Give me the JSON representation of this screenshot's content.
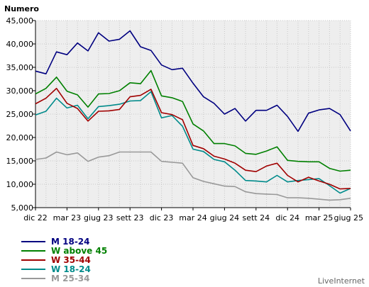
{
  "chart_data": {
    "type": "line",
    "ylabel": "Numero",
    "xlabel": "",
    "ylim": [
      5000,
      45000
    ],
    "yticks": [
      "5,000",
      "10,000",
      "15,000",
      "20,000",
      "25,000",
      "30,000",
      "35,000",
      "40,000",
      "45,000"
    ],
    "ytick_values": [
      5000,
      10000,
      15000,
      20000,
      25000,
      30000,
      35000,
      40000,
      45000
    ],
    "xticks": [
      "dic 22",
      "mar 23",
      "giug 23",
      "sett 23",
      "dic 23",
      "mar 24",
      "giug 24",
      "sett 24",
      "dic 24",
      "mar 25",
      "giug 25"
    ],
    "x": [
      "dic 22",
      "gen 23",
      "feb 23",
      "mar 23",
      "apr 23",
      "mag 23",
      "giug 23",
      "lug 23",
      "ago 23",
      "sett 23",
      "ott 23",
      "nov 23",
      "dic 23",
      "gen 24",
      "feb 24",
      "mar 24",
      "apr 24",
      "mag 24",
      "giug 24",
      "lug 24",
      "ago 24",
      "sett 24",
      "ott 24",
      "nov 24",
      "dic 24",
      "gen 25",
      "feb 25",
      "mar 25",
      "apr 25",
      "mag 25",
      "giug 25"
    ],
    "grid": true,
    "legend_position": "bottom-left",
    "series": [
      {
        "name": "M 18-24",
        "color": "#000080",
        "values": [
          34200,
          33600,
          38300,
          37700,
          40200,
          38500,
          42400,
          40600,
          41000,
          42800,
          39400,
          38600,
          35500,
          34500,
          34800,
          31600,
          28700,
          27300,
          25000,
          26200,
          23500,
          25800,
          25800,
          26900,
          24500,
          21300,
          25200,
          25900,
          26200,
          24900,
          21400
        ]
      },
      {
        "name": "W above 45",
        "color": "#008000",
        "values": [
          29300,
          30500,
          32900,
          29900,
          29100,
          26500,
          29300,
          29400,
          30000,
          31700,
          31500,
          34300,
          28900,
          28500,
          27700,
          22900,
          21400,
          18700,
          18700,
          18200,
          16600,
          16400,
          17100,
          18000,
          15100,
          14900,
          14800,
          14800,
          13400,
          12800,
          13000
        ]
      },
      {
        "name": "W 35-44",
        "color": "#a00000",
        "values": [
          27200,
          28400,
          30500,
          27300,
          26200,
          23500,
          25600,
          25700,
          26000,
          28700,
          29000,
          30300,
          25300,
          24900,
          23800,
          18300,
          17600,
          16000,
          15400,
          14500,
          13000,
          12700,
          13900,
          14500,
          11900,
          10500,
          11500,
          10700,
          10000,
          9000,
          9100
        ]
      },
      {
        "name": "W 18-24",
        "color": "#008b8b",
        "values": [
          24800,
          25600,
          28400,
          26300,
          26900,
          24000,
          26600,
          26800,
          27100,
          27800,
          27900,
          29800,
          24200,
          24700,
          22400,
          17500,
          17000,
          15300,
          14800,
          13000,
          10800,
          10700,
          10500,
          11900,
          10500,
          10800,
          11000,
          11200,
          9700,
          8100,
          9100
        ]
      },
      {
        "name": "M 25-34",
        "color": "#999999",
        "values": [
          15300,
          15600,
          16900,
          16300,
          16700,
          14900,
          15800,
          16100,
          16900,
          16900,
          16900,
          16900,
          14900,
          14700,
          14500,
          11400,
          10600,
          10100,
          9600,
          9500,
          8400,
          8000,
          7900,
          7800,
          7100,
          7100,
          7000,
          6800,
          6600,
          6700,
          7000
        ]
      }
    ]
  },
  "brand": "LiveInternet"
}
